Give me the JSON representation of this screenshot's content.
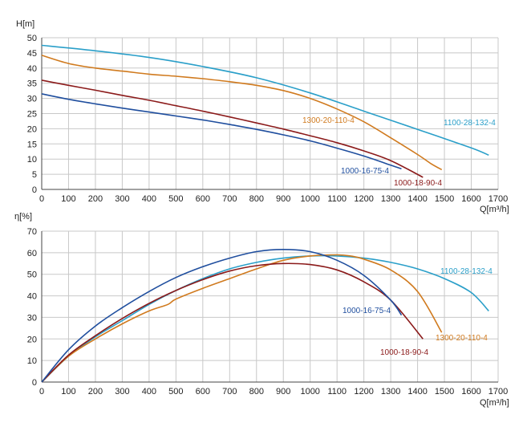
{
  "chart_data": [
    {
      "type": "line",
      "ylabel": "H[m]",
      "xlabel": "Q[m³/h]",
      "xlim": [
        0,
        1700
      ],
      "ylim": [
        0,
        50
      ],
      "xticks": [
        0,
        100,
        200,
        300,
        400,
        500,
        600,
        700,
        800,
        900,
        1000,
        1100,
        1200,
        1300,
        1400,
        1500,
        1600,
        1700
      ],
      "yticks": [
        0,
        5,
        10,
        15,
        20,
        25,
        30,
        35,
        40,
        45,
        50
      ],
      "grid": true,
      "series": [
        {
          "name": "1100-28-132-4",
          "color": "#2a9fc9",
          "x": [
            0,
            200,
            400,
            600,
            800,
            1000,
            1200,
            1400,
            1600,
            1665
          ],
          "y": [
            47.5,
            45.7,
            43.5,
            40.5,
            36.8,
            31.8,
            25.8,
            19.8,
            13.7,
            11.3
          ]
        },
        {
          "name": "1300-20-110-4",
          "color": "#d07a1e",
          "x": [
            0,
            100,
            200,
            300,
            400,
            500,
            600,
            700,
            800,
            900,
            1000,
            1100,
            1200,
            1300,
            1400,
            1450,
            1490
          ],
          "y": [
            44.2,
            41.5,
            40,
            39,
            38,
            37.3,
            36.5,
            35.5,
            34.3,
            32.6,
            30,
            26.5,
            22.3,
            17,
            11.5,
            8.5,
            6.5
          ]
        },
        {
          "name": "1000-18-90-4",
          "color": "#8b1a1a",
          "x": [
            0,
            100,
            200,
            300,
            400,
            500,
            600,
            700,
            800,
            900,
            1000,
            1100,
            1200,
            1300,
            1420
          ],
          "y": [
            36,
            34.3,
            32.7,
            31,
            29.4,
            27.6,
            25.8,
            23.9,
            21.9,
            19.9,
            17.7,
            15.4,
            12.7,
            9.5,
            4
          ]
        },
        {
          "name": "1000-16-75-4",
          "color": "#1f4e9e",
          "x": [
            0,
            100,
            200,
            300,
            400,
            500,
            600,
            700,
            800,
            900,
            1000,
            1100,
            1200,
            1300,
            1340
          ],
          "y": [
            31.5,
            29.7,
            28.2,
            26.8,
            25.5,
            24.2,
            22.9,
            21.4,
            19.8,
            18,
            16,
            13.6,
            11,
            8,
            6.8
          ]
        }
      ]
    },
    {
      "type": "line",
      "ylabel": "η[%]",
      "xlabel": "Q[m³/h]",
      "xlim": [
        0,
        1700
      ],
      "ylim": [
        0,
        70
      ],
      "xticks": [
        0,
        100,
        200,
        300,
        400,
        500,
        600,
        700,
        800,
        900,
        1000,
        1100,
        1200,
        1300,
        1400,
        1500,
        1600,
        1700
      ],
      "yticks": [
        0,
        10,
        20,
        30,
        40,
        50,
        60,
        70
      ],
      "grid": true,
      "series": [
        {
          "name": "1100-28-132-4",
          "color": "#2a9fc9",
          "x": [
            0,
            100,
            200,
            300,
            400,
            500,
            600,
            700,
            800,
            900,
            1000,
            1100,
            1200,
            1300,
            1400,
            1500,
            1600,
            1665
          ],
          "y": [
            0,
            12,
            21,
            28.5,
            36,
            42.5,
            48,
            52.5,
            55.5,
            57.5,
            58.5,
            58.5,
            57.5,
            55.5,
            52.5,
            48,
            41.5,
            33
          ]
        },
        {
          "name": "1300-20-110-4",
          "color": "#d07a1e",
          "x": [
            0,
            100,
            200,
            300,
            400,
            470,
            500,
            600,
            700,
            800,
            900,
            1000,
            1100,
            1150,
            1200,
            1300,
            1400,
            1490
          ],
          "y": [
            0,
            12,
            20,
            27,
            33,
            36,
            38.5,
            43.5,
            48,
            52.5,
            56.5,
            58.5,
            59,
            58.5,
            57,
            52,
            42,
            23
          ]
        },
        {
          "name": "1000-18-90-4",
          "color": "#8b1a1a",
          "x": [
            0,
            100,
            200,
            300,
            400,
            500,
            600,
            700,
            800,
            900,
            1000,
            1100,
            1200,
            1300,
            1420
          ],
          "y": [
            0,
            12.5,
            21.5,
            29.5,
            36.5,
            42.5,
            47.5,
            51.5,
            54,
            55,
            54.5,
            52,
            46.5,
            38,
            20
          ]
        },
        {
          "name": "1000-16-75-4",
          "color": "#1f4e9e",
          "x": [
            0,
            100,
            200,
            300,
            400,
            500,
            600,
            700,
            800,
            900,
            1000,
            1100,
            1200,
            1300,
            1340
          ],
          "y": [
            0,
            15,
            26,
            34.5,
            42,
            48.5,
            53.5,
            57.5,
            60.5,
            61.5,
            60.5,
            56.5,
            49.5,
            38,
            31
          ]
        }
      ]
    }
  ]
}
